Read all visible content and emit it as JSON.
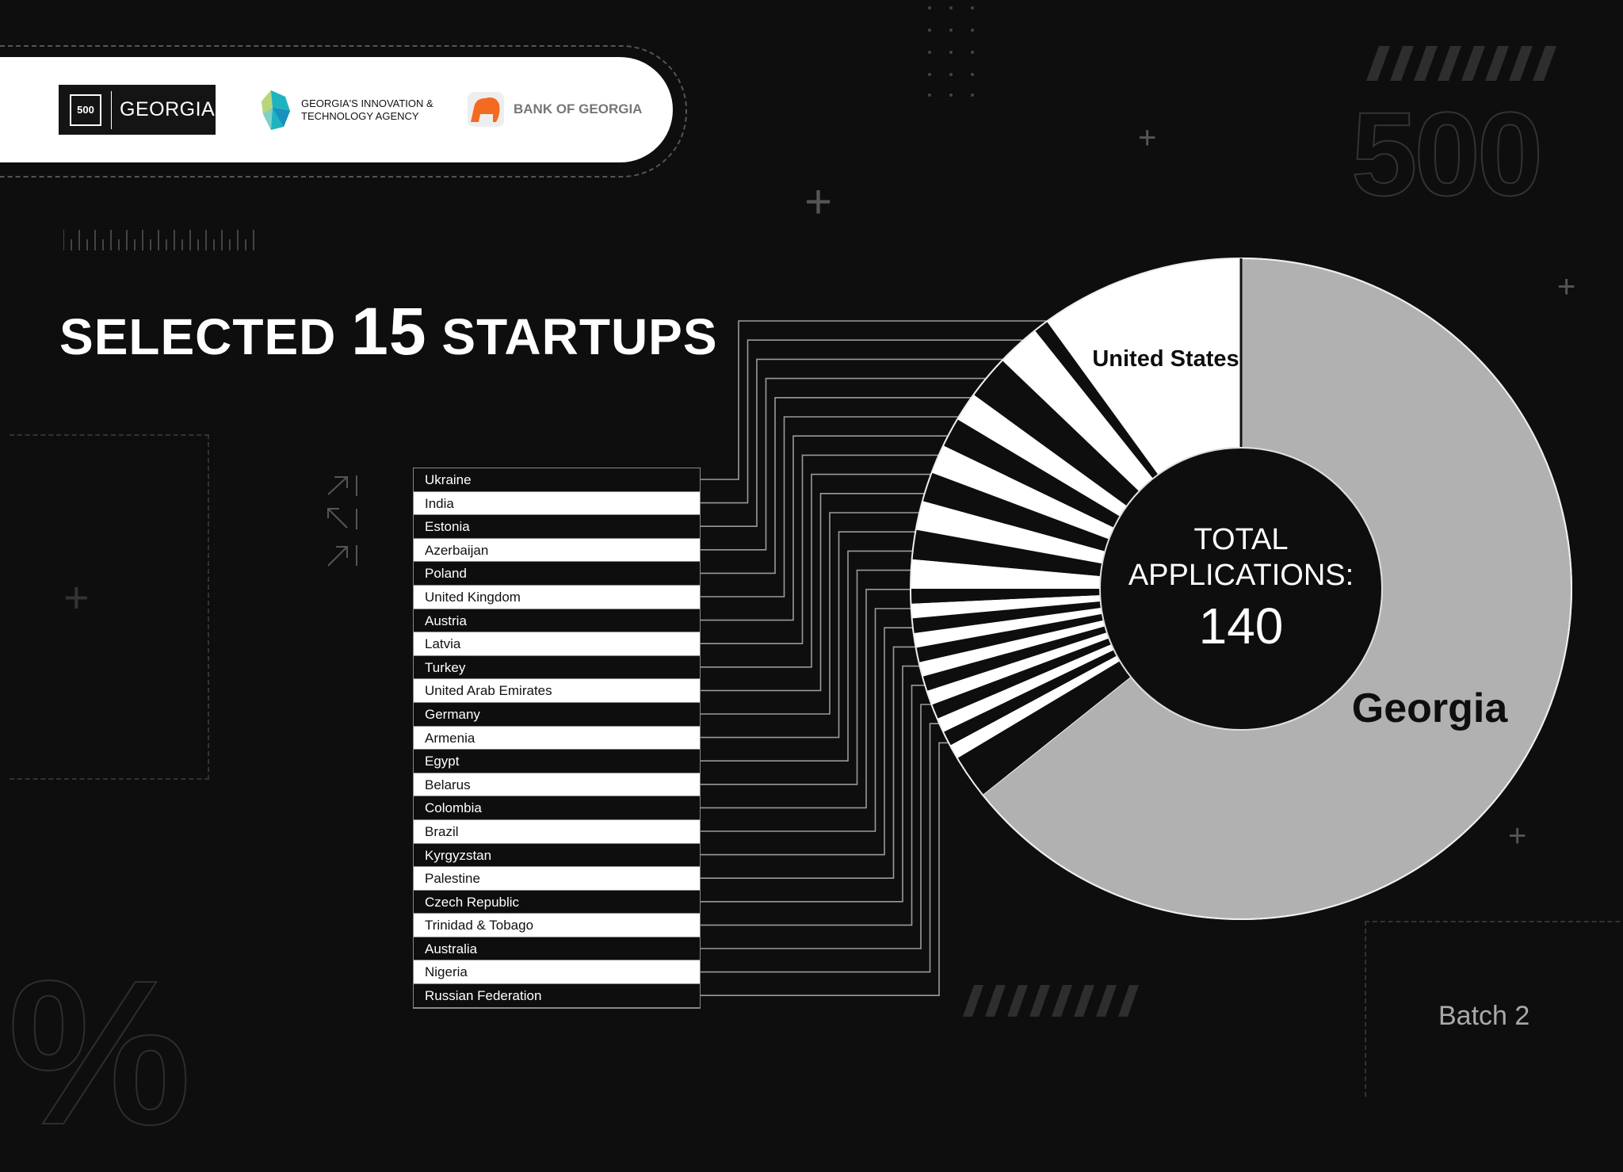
{
  "header": {
    "logo_500": {
      "badge": "500",
      "text": "GEORGIA"
    },
    "logo_gita": {
      "line1": "GEORGIA'S INNOVATION &",
      "line2": "TECHNOLOGY AGENCY"
    },
    "logo_bog": {
      "text": "BANK OF GEORGIA"
    }
  },
  "title": {
    "pre": "SELECTED ",
    "number": "15",
    "post": " STARTUPS"
  },
  "decor": {
    "big_number": "500"
  },
  "footer": {
    "batch": "Batch 2"
  },
  "colors": {
    "background": "#0e0e0e",
    "georgia": "#b1b1b1",
    "slice_light": "#ffffff",
    "slice_dark": "#0e0e0e",
    "connector": "#9a9a9a"
  },
  "chart_data": {
    "type": "pie",
    "donut": true,
    "center_label": {
      "line1": "TOTAL",
      "line2": "APPLICATIONS:",
      "value": "140"
    },
    "total": 140,
    "labeled_slices": [
      "Georgia",
      "United States"
    ],
    "slices": [
      {
        "name": "Georgia",
        "value": 90
      },
      {
        "name": "Russian Federation",
        "value": 3
      },
      {
        "name": "Nigeria",
        "value": 1
      },
      {
        "name": "Australia",
        "value": 1
      },
      {
        "name": "Trinidad & Tobago",
        "value": 1
      },
      {
        "name": "Czech Republic",
        "value": 1
      },
      {
        "name": "Palestine",
        "value": 1
      },
      {
        "name": "Kyrgyzstan",
        "value": 1
      },
      {
        "name": "Brazil",
        "value": 1
      },
      {
        "name": "Colombia",
        "value": 1
      },
      {
        "name": "Belarus",
        "value": 1
      },
      {
        "name": "Egypt",
        "value": 1
      },
      {
        "name": "Armenia",
        "value": 1
      },
      {
        "name": "Germany",
        "value": 1
      },
      {
        "name": "United Arab Emirates",
        "value": 2
      },
      {
        "name": "Turkey",
        "value": 2
      },
      {
        "name": "Latvia",
        "value": 2
      },
      {
        "name": "Austria",
        "value": 2
      },
      {
        "name": "United Kingdom",
        "value": 2
      },
      {
        "name": "Poland",
        "value": 2
      },
      {
        "name": "Azerbaijan",
        "value": 2
      },
      {
        "name": "Estonia",
        "value": 3
      },
      {
        "name": "India",
        "value": 3
      },
      {
        "name": "Ukraine",
        "value": 1
      },
      {
        "name": "United States",
        "value": 14
      }
    ],
    "legend_list": [
      "Ukraine",
      "India",
      "Estonia",
      "Azerbaijan",
      "Poland",
      "United Kingdom",
      "Austria",
      "Latvia",
      "Turkey",
      "United Arab Emirates",
      "Germany",
      "Armenia",
      "Egypt",
      "Belarus",
      "Colombia",
      "Brazil",
      "Kyrgyzstan",
      "Palestine",
      "Czech Republic",
      "Trinidad & Tobago",
      "Australia",
      "Nigeria",
      "Russian Federation"
    ],
    "legend_placement": "left"
  }
}
